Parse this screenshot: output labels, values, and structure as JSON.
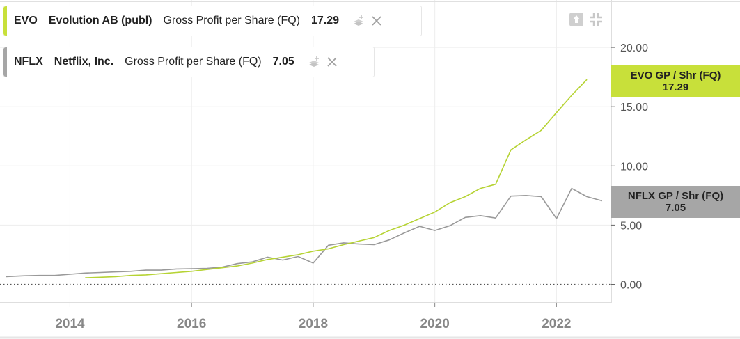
{
  "legends": [
    {
      "symbol": "EVO",
      "company": "Evolution AB (publ)",
      "metric": "Gross Profit per Share (FQ)",
      "value": "17.29"
    },
    {
      "symbol": "NFLX",
      "company": "Netflix, Inc.",
      "metric": "Gross Profit per Share (FQ)",
      "value": "7.05"
    }
  ],
  "tags": [
    {
      "label": "EVO GP / Shr (FQ)",
      "value": "17.29",
      "color": "#c8e03a"
    },
    {
      "label": "NFLX GP / Shr (FQ)",
      "value": "7.05",
      "color": "#a6a6a6"
    }
  ],
  "icons": {
    "export": "export-icon",
    "collapse": "collapse-icon",
    "stack": "stack-layers-icon",
    "close": "close-icon"
  },
  "chart_data": {
    "type": "line",
    "x_ticks": [
      "2014",
      "2016",
      "2018",
      "2020",
      "2022"
    ],
    "y_ticks": [
      "0.00",
      "5.00",
      "10.00",
      "15.00",
      "20.00"
    ],
    "xlim": [
      2012.85,
      2022.9
    ],
    "ylim": [
      0,
      24
    ],
    "grid": true,
    "series": [
      {
        "name": "EVO",
        "color": "#b6d334",
        "x": [
          2014.25,
          2014.5,
          2014.75,
          2015.0,
          2015.25,
          2015.5,
          2015.75,
          2016.0,
          2016.25,
          2016.5,
          2016.75,
          2017.0,
          2017.25,
          2017.5,
          2017.75,
          2018.0,
          2018.25,
          2018.5,
          2018.75,
          2019.0,
          2019.25,
          2019.5,
          2019.75,
          2020.0,
          2020.25,
          2020.5,
          2020.75,
          2021.0,
          2021.25,
          2021.5,
          2021.75,
          2022.0,
          2022.25,
          2022.5
        ],
        "values": [
          0.55,
          0.6,
          0.65,
          0.75,
          0.8,
          0.9,
          1.0,
          1.1,
          1.25,
          1.4,
          1.55,
          1.8,
          2.1,
          2.3,
          2.5,
          2.8,
          3.0,
          3.35,
          3.65,
          3.95,
          4.55,
          5.0,
          5.55,
          6.1,
          6.9,
          7.4,
          8.1,
          8.45,
          11.35,
          12.2,
          13.0,
          14.5,
          15.95,
          17.29
        ]
      },
      {
        "name": "NFLX",
        "color": "#999999",
        "x": [
          2012.95,
          2013.25,
          2013.5,
          2013.75,
          2014.0,
          2014.25,
          2014.5,
          2014.75,
          2015.0,
          2015.25,
          2015.5,
          2015.75,
          2016.0,
          2016.25,
          2016.5,
          2016.75,
          2017.0,
          2017.25,
          2017.5,
          2017.75,
          2018.0,
          2018.25,
          2018.5,
          2018.75,
          2019.0,
          2019.25,
          2019.5,
          2019.75,
          2020.0,
          2020.25,
          2020.5,
          2020.75,
          2021.0,
          2021.25,
          2021.5,
          2021.75,
          2022.0,
          2022.25,
          2022.5,
          2022.75
        ],
        "values": [
          0.65,
          0.72,
          0.75,
          0.75,
          0.85,
          0.95,
          1.0,
          1.05,
          1.1,
          1.2,
          1.2,
          1.3,
          1.32,
          1.35,
          1.45,
          1.75,
          1.9,
          2.3,
          2.05,
          2.35,
          1.8,
          3.3,
          3.5,
          3.4,
          3.35,
          3.75,
          4.35,
          4.9,
          4.55,
          4.95,
          5.65,
          5.8,
          5.6,
          7.45,
          7.5,
          7.4,
          5.55,
          8.1,
          7.4,
          7.05
        ]
      }
    ]
  }
}
